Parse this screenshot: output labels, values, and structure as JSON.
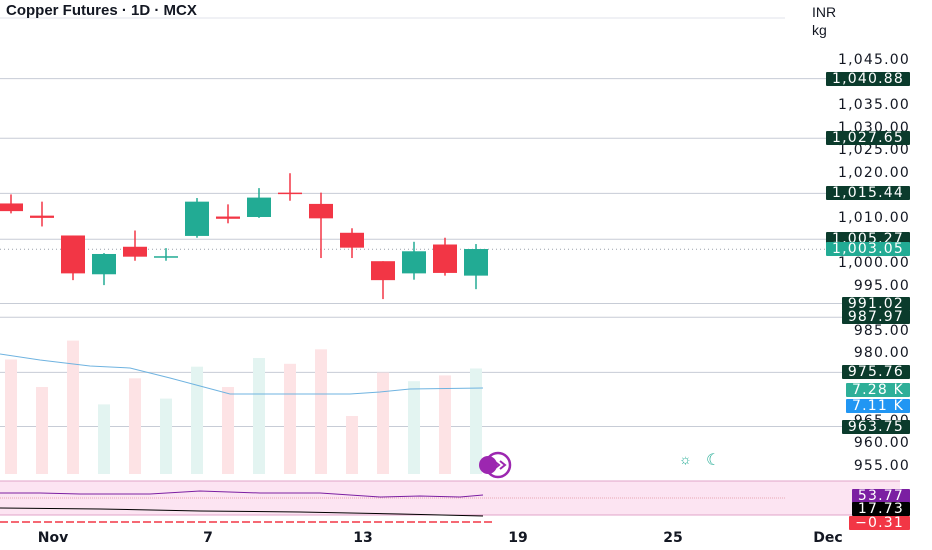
{
  "header": {
    "title": "Copper Futures · 1D · MCX"
  },
  "price_axis": {
    "currency": "INR",
    "unit": "kg",
    "ticks": [
      "1,045.00",
      "1,035.00",
      "1,030.00",
      "1,025.00",
      "1,020.00",
      "1,010.00",
      "1,000.00",
      "995.00",
      "985.00",
      "980.00",
      "965.00",
      "960.00",
      "955.00"
    ],
    "tick_values": [
      1045,
      1035,
      1030,
      1025,
      1020,
      1010,
      1000,
      995,
      985,
      980,
      965,
      960,
      955
    ]
  },
  "badges": [
    {
      "label": "1,040.88",
      "value": 1040.88,
      "color": "#0b3b2c"
    },
    {
      "label": "1,027.65",
      "value": 1027.65,
      "color": "#0b3b2c"
    },
    {
      "label": "1,015.44",
      "value": 1015.44,
      "color": "#0b3b2c"
    },
    {
      "label": "1,005.27",
      "value": 1005.27,
      "color": "#0b3b2c"
    },
    {
      "label": "1,003.05",
      "value": 1003.05,
      "color": "#22ab94"
    },
    {
      "label": "991.02",
      "value": 991.02,
      "color": "#0b3b2c"
    },
    {
      "label": "987.97",
      "value": 987.97,
      "color": "#0b3b2c"
    },
    {
      "label": "975.76",
      "value": 975.76,
      "color": "#0b3b2c"
    },
    {
      "label": "7.28 K",
      "value": 971.9,
      "color": "#2eaf98"
    },
    {
      "label": "7.11 K",
      "value": 968.4,
      "color": "#2196f3"
    },
    {
      "label": "963.75",
      "value": 963.75,
      "color": "#0b3b2c"
    },
    {
      "label": "53.77",
      "value": null,
      "color": "#7b1fa2"
    },
    {
      "label": "17.73",
      "value": null,
      "color": "#000000"
    },
    {
      "label": "−0.31",
      "value": null,
      "color": "#f23645"
    }
  ],
  "x_axis": {
    "ticks": [
      "Nov",
      "7",
      "13",
      "19",
      "25",
      "Dec"
    ],
    "tick_index": [
      1,
      6,
      11,
      16,
      21,
      26
    ]
  },
  "chart_data": {
    "type": "candlestick",
    "title": "Copper Futures · 1D · MCX",
    "yunit": "INR/kg",
    "ylim": [
      953,
      1048
    ],
    "candles": [
      {
        "i": 0,
        "open": 1013.2,
        "high": 1015.2,
        "low": 1011.0,
        "close": 1011.5
      },
      {
        "i": 1,
        "open": 1010.5,
        "high": 1013.6,
        "low": 1008.1,
        "close": 1010.0
      },
      {
        "i": 2,
        "open": 1006.1,
        "high": 1006.1,
        "low": 996.2,
        "close": 997.7
      },
      {
        "i": 3,
        "open": 997.5,
        "high": 1002.2,
        "low": 995.1,
        "close": 1002.0
      },
      {
        "i": 4,
        "open": 1003.6,
        "high": 1007.2,
        "low": 1000.5,
        "close": 1001.4
      },
      {
        "i": 5,
        "open": 1001.5,
        "high": 1003.3,
        "low": 1000.5,
        "close": 1001.5
      },
      {
        "i": 6,
        "open": 1006.0,
        "high": 1014.4,
        "low": 1005.6,
        "close": 1013.6
      },
      {
        "i": 7,
        "open": 1010.3,
        "high": 1013.0,
        "low": 1008.8,
        "close": 1009.8
      },
      {
        "i": 8,
        "open": 1010.2,
        "high": 1016.6,
        "low": 1010.0,
        "close": 1014.5
      },
      {
        "i": 9,
        "open": 1015.6,
        "high": 1019.9,
        "low": 1013.8,
        "close": 1015.4
      },
      {
        "i": 10,
        "open": 1013.1,
        "high": 1015.6,
        "low": 1001.1,
        "close": 1009.9
      },
      {
        "i": 11,
        "open": 1006.7,
        "high": 1007.7,
        "low": 1001.1,
        "close": 1003.4
      },
      {
        "i": 12,
        "open": 1000.4,
        "high": 1000.4,
        "low": 992.0,
        "close": 996.2
      },
      {
        "i": 13,
        "open": 997.7,
        "high": 1004.7,
        "low": 996.3,
        "close": 1002.6
      },
      {
        "i": 14,
        "open": 1004.1,
        "high": 1005.6,
        "low": 997.2,
        "close": 997.8
      },
      {
        "i": 15,
        "open": 997.2,
        "high": 1004.2,
        "low": 994.2,
        "close": 1003.1
      }
    ],
    "volume": {
      "unit": "K",
      "values": [
        7.9,
        6.0,
        9.2,
        4.8,
        6.6,
        5.2,
        7.4,
        6.0,
        8.0,
        7.6,
        8.6,
        4.0,
        7.0,
        6.4,
        6.8,
        7.28
      ],
      "ma_last": 7.11
    },
    "indicator_values": {
      "rsi": 53.77,
      "adx": 17.73,
      "macd": -0.31
    },
    "price_lines": [
      1040.88,
      1027.65,
      1015.44,
      1005.27,
      991.02,
      987.97,
      975.76,
      963.75
    ]
  },
  "icons": {
    "sun": "sun-icon",
    "moon": "moon-icon",
    "replay": "replay-icon"
  },
  "colors": {
    "up": "#22ab94",
    "down": "#f23645",
    "ma": "#6fb3e0",
    "rsi_band": "#fce4f2",
    "rsi_line": "#7b1fa2"
  }
}
